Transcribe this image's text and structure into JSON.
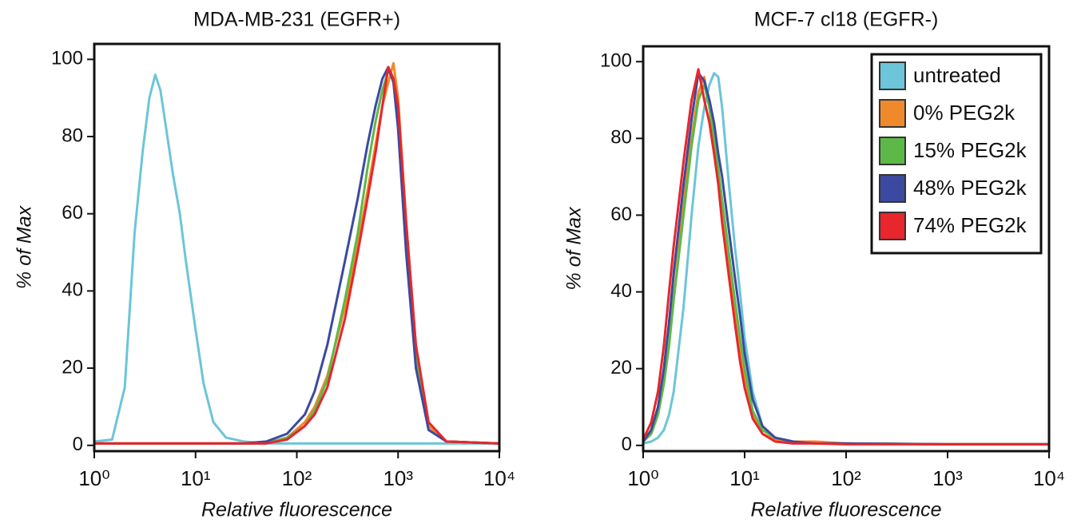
{
  "chart_data": [
    {
      "type": "line",
      "title": "MDA-MB-231 (EGFR+)",
      "x_label": "Relative fluorescence",
      "y_label": "% of Max",
      "x_scale": "log",
      "grid": false,
      "xlim": [
        1,
        10000
      ],
      "ylim": [
        -1.5,
        104
      ],
      "xticks": [
        {
          "value": 1,
          "label": "10⁰"
        },
        {
          "value": 10,
          "label": "10¹"
        },
        {
          "value": 100,
          "label": "10²"
        },
        {
          "value": 1000,
          "label": "10³"
        },
        {
          "value": 10000,
          "label": "10⁴"
        }
      ],
      "yticks": [
        0,
        20,
        40,
        60,
        80,
        100
      ],
      "x": [
        1,
        1.5,
        2,
        2.5,
        3,
        3.5,
        4,
        4.5,
        5,
        6,
        7,
        8,
        10,
        12,
        15,
        20,
        30,
        50,
        80,
        120,
        150,
        200,
        300,
        400,
        500,
        600,
        700,
        800,
        900,
        1000,
        1200,
        1500,
        2000,
        3000,
        10000
      ],
      "series": [
        {
          "color": "#6cc5d8",
          "values": [
            1,
            1.5,
            15,
            55,
            76,
            90,
            96,
            92,
            84,
            70,
            60,
            48,
            30,
            16,
            6,
            2,
            1,
            0.5,
            0.5,
            0.5,
            0.5,
            0.5,
            0.5,
            0.5,
            0.5,
            0.5,
            0.5,
            0.5,
            0.5,
            0.5,
            0.5,
            0.5,
            0.5,
            0.5,
            0.5
          ]
        },
        {
          "color": "#f0892b",
          "values": [
            0.5,
            0.5,
            0.5,
            0.5,
            0.5,
            0.5,
            0.5,
            0.5,
            0.5,
            0.5,
            0.5,
            0.5,
            0.5,
            0.5,
            0.5,
            0.5,
            0.5,
            0.5,
            2,
            6,
            10,
            18,
            36,
            52,
            66,
            78,
            88,
            94,
            99,
            90,
            58,
            25,
            5,
            1,
            0.5
          ]
        },
        {
          "color": "#5cb947",
          "values": [
            0.5,
            0.5,
            0.5,
            0.5,
            0.5,
            0.5,
            0.5,
            0.5,
            0.5,
            0.5,
            0.5,
            0.5,
            0.5,
            0.5,
            0.5,
            0.5,
            0.5,
            0.5,
            2,
            5,
            9,
            17,
            38,
            55,
            72,
            84,
            92,
            97,
            95,
            86,
            55,
            22,
            4,
            1,
            0.5
          ]
        },
        {
          "color": "#3b4aa0",
          "values": [
            0.5,
            0.5,
            0.5,
            0.5,
            0.5,
            0.5,
            0.5,
            0.5,
            0.5,
            0.5,
            0.5,
            0.5,
            0.5,
            0.5,
            0.5,
            0.5,
            0.5,
            1,
            3,
            8,
            14,
            26,
            48,
            64,
            78,
            88,
            95,
            98,
            94,
            82,
            50,
            20,
            4,
            1,
            0.5
          ]
        },
        {
          "color": "#e8262b",
          "values": [
            0.5,
            0.5,
            0.5,
            0.5,
            0.5,
            0.5,
            0.5,
            0.5,
            0.5,
            0.5,
            0.5,
            0.5,
            0.5,
            0.5,
            0.5,
            0.5,
            0.5,
            0.5,
            1.5,
            5,
            8,
            15,
            33,
            50,
            64,
            76,
            88,
            98,
            95,
            88,
            58,
            26,
            6,
            1,
            0.5
          ]
        }
      ]
    },
    {
      "type": "line",
      "title": "MCF-7 cl18 (EGFR-)",
      "x_label": "Relative fluorescence",
      "y_label": "% of Max",
      "x_scale": "log",
      "grid": false,
      "legend": "upper right",
      "xlim": [
        1,
        10000
      ],
      "ylim": [
        -1.5,
        104
      ],
      "xticks": [
        {
          "value": 1,
          "label": "10⁰"
        },
        {
          "value": 10,
          "label": "10¹"
        },
        {
          "value": 100,
          "label": "10²"
        },
        {
          "value": 1000,
          "label": "10³"
        },
        {
          "value": 10000,
          "label": "10⁴"
        }
      ],
      "yticks": [
        0,
        20,
        40,
        60,
        80,
        100
      ],
      "x": [
        1,
        1.2,
        1.4,
        1.6,
        1.8,
        2,
        2.5,
        3,
        3.5,
        4,
        4.5,
        5,
        5.5,
        6,
        7,
        8,
        9,
        10,
        12,
        15,
        20,
        30,
        50,
        100,
        1000,
        10000
      ],
      "series": [
        {
          "name": "untreated",
          "color": "#6cc5d8",
          "values": [
            0.5,
            1,
            2,
            4,
            8,
            14,
            36,
            60,
            78,
            88,
            94,
            97,
            96,
            88,
            68,
            52,
            40,
            28,
            14,
            5,
            2,
            1,
            0.5,
            0.5,
            0.3,
            0.3
          ]
        },
        {
          "name": "0% PEG2k",
          "color": "#f0892b",
          "values": [
            1,
            4,
            10,
            20,
            32,
            44,
            64,
            80,
            92,
            96,
            88,
            78,
            70,
            62,
            48,
            36,
            26,
            18,
            8,
            3,
            1.5,
            1,
            1,
            0.5,
            0.3,
            0.3
          ]
        },
        {
          "name": "15% PEG2k",
          "color": "#5cb947",
          "values": [
            1,
            3,
            8,
            16,
            26,
            38,
            60,
            78,
            90,
            94,
            88,
            80,
            72,
            64,
            50,
            38,
            28,
            20,
            9,
            4,
            2,
            1,
            0.5,
            0.5,
            0.3,
            0.3
          ]
        },
        {
          "name": "48% PEG2k",
          "color": "#3b4aa0",
          "values": [
            1,
            4,
            10,
            20,
            32,
            45,
            68,
            85,
            97,
            95,
            90,
            84,
            76,
            70,
            56,
            44,
            34,
            24,
            12,
            5,
            2,
            1,
            0.5,
            0.5,
            0.3,
            0.3
          ]
        },
        {
          "name": "74% PEG2k",
          "color": "#e8262b",
          "values": [
            1.5,
            6,
            14,
            26,
            40,
            52,
            74,
            90,
            98,
            90,
            84,
            76,
            68,
            58,
            44,
            32,
            22,
            15,
            7,
            3,
            1,
            0.5,
            0.5,
            0.3,
            0.3,
            0.3
          ]
        }
      ]
    }
  ]
}
